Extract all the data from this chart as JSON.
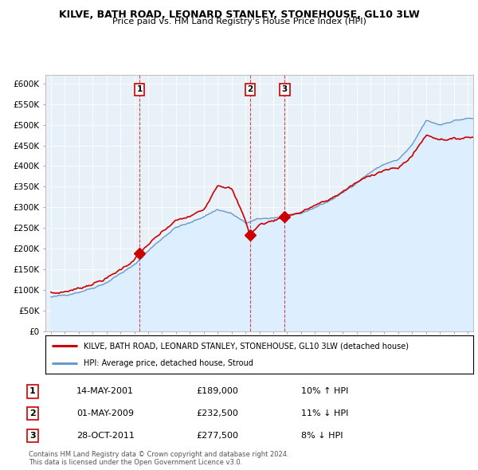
{
  "title": "KILVE, BATH ROAD, LEONARD STANLEY, STONEHOUSE, GL10 3LW",
  "subtitle": "Price paid vs. HM Land Registry's House Price Index (HPI)",
  "ylabel_ticks": [
    "£0",
    "£50K",
    "£100K",
    "£150K",
    "£200K",
    "£250K",
    "£300K",
    "£350K",
    "£400K",
    "£450K",
    "£500K",
    "£550K",
    "£600K"
  ],
  "ytick_values": [
    0,
    50000,
    100000,
    150000,
    200000,
    250000,
    300000,
    350000,
    400000,
    450000,
    500000,
    550000,
    600000
  ],
  "ylim": [
    0,
    620000
  ],
  "xlim_start": 1994.6,
  "xlim_end": 2025.4,
  "legend_line1": "KILVE, BATH ROAD, LEONARD STANLEY, STONEHOUSE, GL10 3LW (detached house)",
  "legend_line2": "HPI: Average price, detached house, Stroud",
  "sale1_date": "14-MAY-2001",
  "sale1_price": "£189,000",
  "sale1_hpi": "10% ↑ HPI",
  "sale2_date": "01-MAY-2009",
  "sale2_price": "£232,500",
  "sale2_hpi": "11% ↓ HPI",
  "sale3_date": "28-OCT-2011",
  "sale3_price": "£277,500",
  "sale3_hpi": "8% ↓ HPI",
  "footer": "Contains HM Land Registry data © Crown copyright and database right 2024.\nThis data is licensed under the Open Government Licence v3.0.",
  "red_color": "#cc0000",
  "blue_color": "#6699cc",
  "blue_fill": "#ddeeff",
  "plot_bg": "#e8f0f8",
  "sale1_x": 2001.37,
  "sale1_y": 189000,
  "sale2_x": 2009.33,
  "sale2_y": 232500,
  "sale3_x": 2011.83,
  "sale3_y": 277500
}
